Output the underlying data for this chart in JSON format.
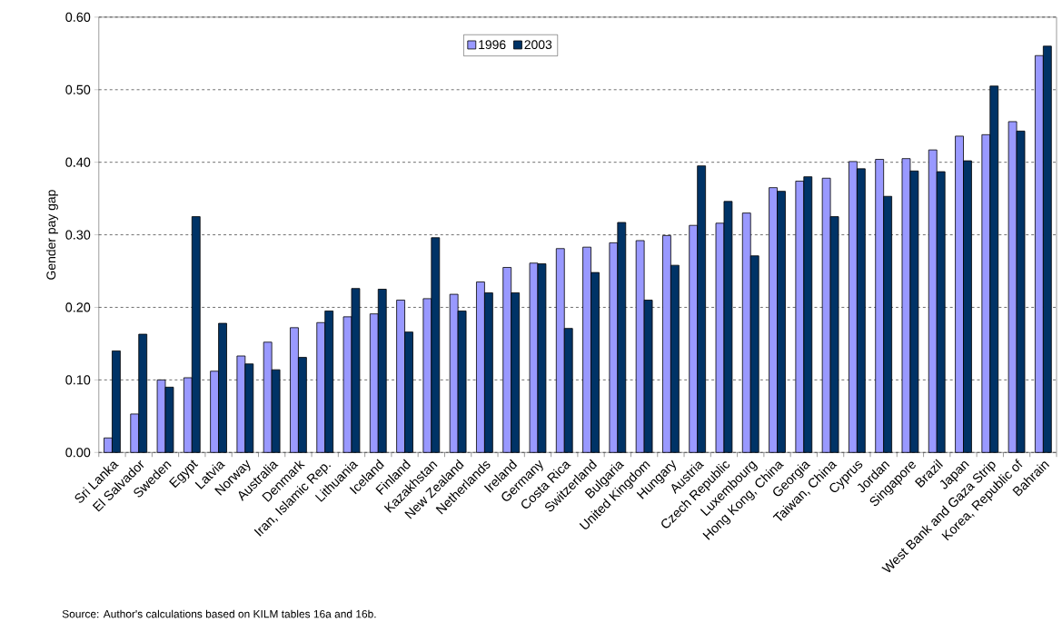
{
  "chart_data": {
    "type": "bar",
    "ylabel": "Gender pay gap",
    "categories": [
      "Sri Lanka",
      "El Salvador",
      "Sweden",
      "Egypt",
      "Latvia",
      "Norway",
      "Australia",
      "Denmark",
      "Iran, Islamic Rep.",
      "Lithuania",
      "Iceland",
      "Finland",
      "Kazakhstan",
      "New Zealand",
      "Netherlands",
      "Ireland",
      "Germany",
      "Costa Rica",
      "Switzerland",
      "Bulgaria",
      "United Kingdom",
      "Hungary",
      "Austria",
      "Czech Republic",
      "Luxembourg",
      "Hong Kong, China",
      "Georgia",
      "Taiwan, China",
      "Cyprus",
      "Jordan",
      "Singapore",
      "Brazil",
      "Japan",
      "West Bank and Gaza Strip",
      "Korea, Republic of",
      "Bahrain"
    ],
    "series": [
      {
        "name": "1996",
        "color": "#9999ff",
        "values": [
          0.02,
          0.053,
          0.1,
          0.103,
          0.112,
          0.133,
          0.152,
          0.172,
          0.179,
          0.187,
          0.191,
          0.21,
          0.212,
          0.218,
          0.235,
          0.255,
          0.261,
          0.281,
          0.283,
          0.289,
          0.292,
          0.299,
          0.313,
          0.316,
          0.33,
          0.365,
          0.374,
          0.378,
          0.401,
          0.404,
          0.405,
          0.417,
          0.436,
          0.438,
          0.456,
          0.547
        ]
      },
      {
        "name": "2003",
        "color": "#003366",
        "values": [
          0.14,
          0.163,
          0.09,
          0.325,
          0.178,
          0.122,
          0.114,
          0.131,
          0.195,
          0.226,
          0.225,
          0.166,
          0.296,
          0.195,
          0.22,
          0.22,
          0.26,
          0.171,
          0.248,
          0.317,
          0.21,
          0.258,
          0.395,
          0.346,
          0.271,
          0.36,
          0.38,
          0.325,
          0.391,
          0.353,
          0.388,
          0.387,
          0.402,
          0.505,
          0.443,
          0.56
        ]
      }
    ],
    "ylim": [
      0,
      0.6
    ],
    "yticks": [
      {
        "value": 0,
        "label": "0.00"
      },
      {
        "value": 0.1,
        "label": "0.10"
      },
      {
        "value": 0.2,
        "label": "0.20"
      },
      {
        "value": 0.3,
        "label": "0.30"
      },
      {
        "value": 0.4,
        "label": "0.40"
      },
      {
        "value": 0.5,
        "label": "0.50"
      },
      {
        "value": 0.6,
        "label": "0.60"
      }
    ],
    "grid": "y",
    "legend": "top",
    "annotations": [
      "Source: Author's calculations based on KILM tables 16a and 16b."
    ]
  }
}
